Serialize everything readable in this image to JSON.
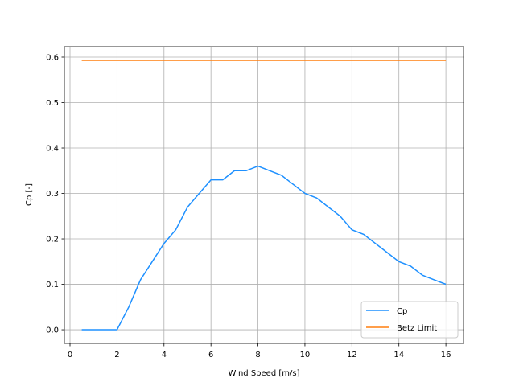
{
  "chart_data": {
    "type": "line",
    "title": "",
    "xlabel": "Wind Speed [m/s]",
    "ylabel": "Cp [-]",
    "xlim": [
      -0.24,
      16.75
    ],
    "ylim": [
      -0.03,
      0.623
    ],
    "xticks": [
      0,
      2,
      4,
      6,
      8,
      10,
      12,
      14,
      16
    ],
    "yticks": [
      0.0,
      0.1,
      0.2,
      0.3,
      0.4,
      0.5,
      0.6
    ],
    "xtick_labels": [
      "0",
      "2",
      "4",
      "6",
      "8",
      "10",
      "12",
      "14",
      "16"
    ],
    "ytick_labels": [
      "0.0",
      "0.1",
      "0.2",
      "0.3",
      "0.4",
      "0.5",
      "0.6"
    ],
    "grid": true,
    "legend_position": "lower-right",
    "x": [
      0.5,
      1,
      1.5,
      2,
      2.5,
      3,
      3.5,
      4,
      4.5,
      5,
      5.5,
      6,
      6.5,
      7,
      7.5,
      8,
      8.5,
      9,
      9.5,
      10,
      10.5,
      11,
      11.5,
      12,
      12.5,
      13,
      13.5,
      14,
      14.5,
      15,
      15.5,
      16
    ],
    "series": [
      {
        "name": "Cp",
        "color": "#1e90ff",
        "values": [
          0,
          0,
          0,
          0,
          0.05,
          0.11,
          0.15,
          0.19,
          0.22,
          0.27,
          0.3,
          0.33,
          0.33,
          0.35,
          0.35,
          0.36,
          0.35,
          0.34,
          0.32,
          0.3,
          0.29,
          0.27,
          0.25,
          0.22,
          0.21,
          0.19,
          0.17,
          0.15,
          0.14,
          0.12,
          0.11,
          0.1
        ]
      },
      {
        "name": "Betz Limit",
        "color": "#ff7f0e",
        "values": [
          0.593,
          0.593,
          0.593,
          0.593,
          0.593,
          0.593,
          0.593,
          0.593,
          0.593,
          0.593,
          0.593,
          0.593,
          0.593,
          0.593,
          0.593,
          0.593,
          0.593,
          0.593,
          0.593,
          0.593,
          0.593,
          0.593,
          0.593,
          0.593,
          0.593,
          0.593,
          0.593,
          0.593,
          0.593,
          0.593,
          0.593,
          0.593
        ]
      }
    ]
  }
}
